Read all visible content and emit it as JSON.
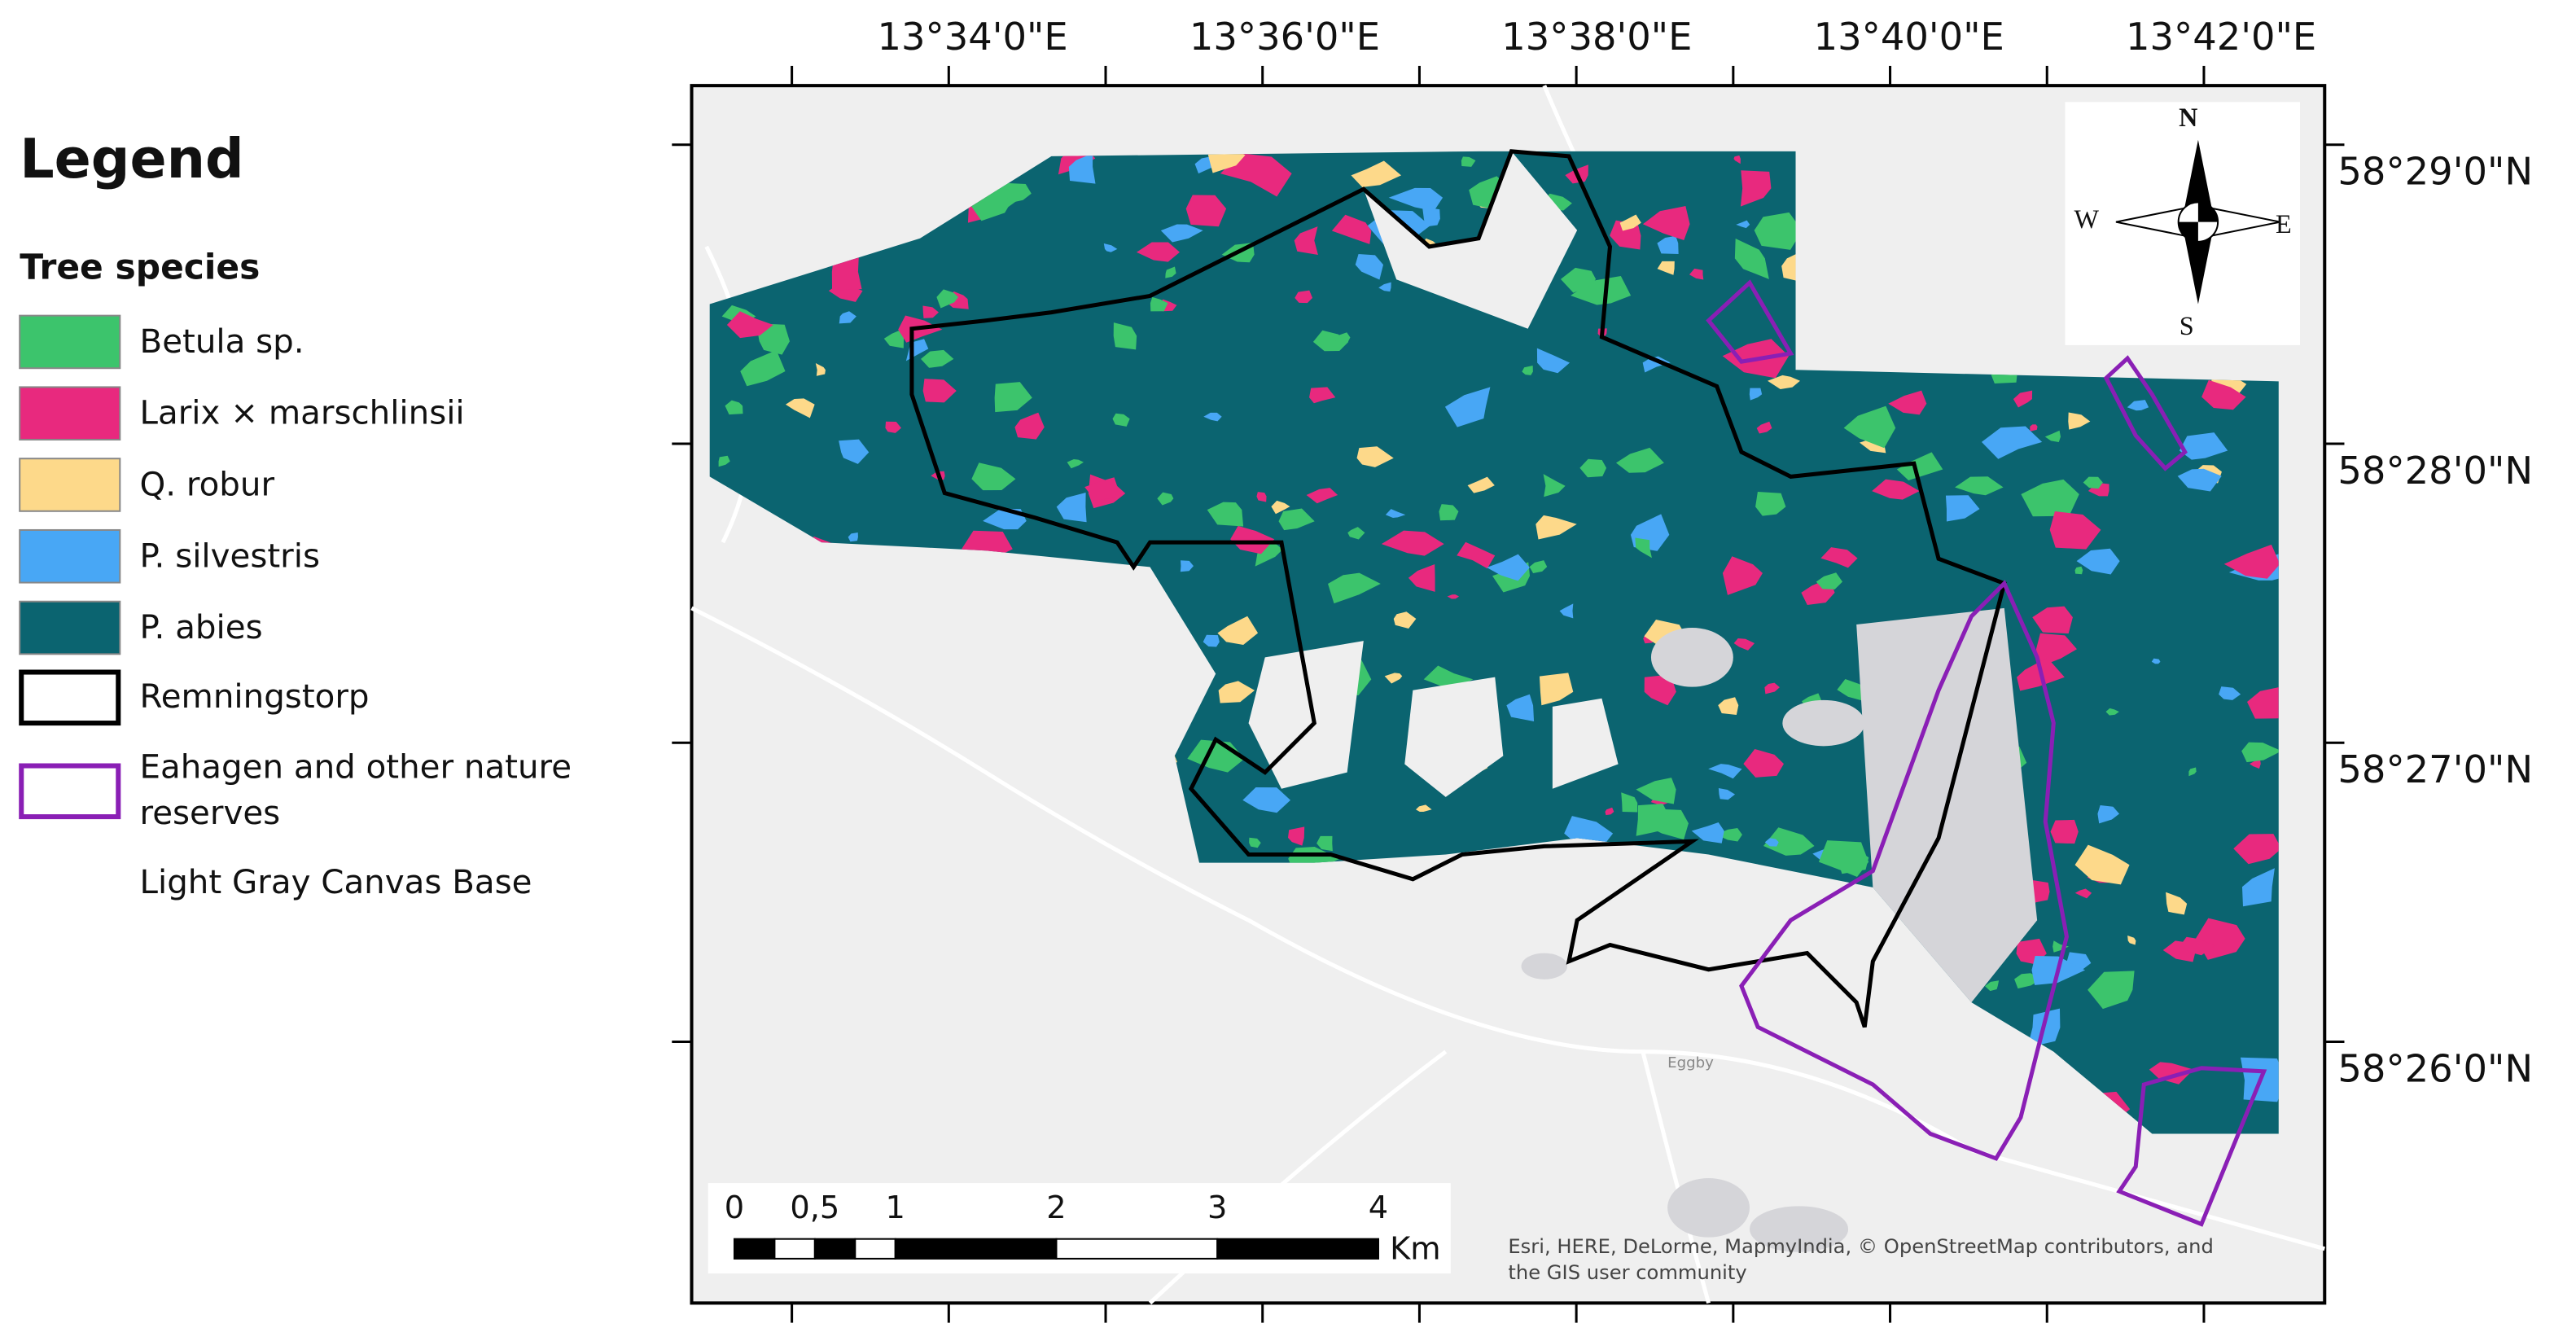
{
  "legend": {
    "title": "Legend",
    "group_title": "Tree species",
    "species": [
      {
        "label": "Betula sp.",
        "color": "#3cc46c"
      },
      {
        "label": "Larix × marschlinsii",
        "color": "#e8297e"
      },
      {
        "label": "Q. robur",
        "color": "#fdd98a"
      },
      {
        "label": "P. silvestris",
        "color": "#48a7f5"
      },
      {
        "label": "P. abies",
        "color": "#0b6470"
      }
    ],
    "outlines": [
      {
        "label": "Remningstorp",
        "color": "#000000"
      },
      {
        "label": "Eahagen and other nature reserves",
        "color": "#8a1fb5"
      }
    ],
    "basemap": "Light Gray Canvas Base"
  },
  "map": {
    "top_labels": [
      "13°34'0\"E",
      "13°36'0\"E",
      "13°38'0\"E",
      "13°40'0\"E",
      "13°42'0\"E"
    ],
    "right_labels": [
      "58°29'0\"N",
      "58°28'0\"N",
      "58°27'0\"N",
      "58°26'0\"N"
    ],
    "compass": {
      "n": "N",
      "e": "E",
      "s": "S",
      "w": "W"
    },
    "scale_bar": {
      "ticks": [
        0,
        {
          "value": 0.5,
          "label": "0,5"
        },
        1,
        2,
        3,
        4
      ],
      "unit": "Km"
    },
    "place_label": "Eggby",
    "attribution": [
      "Esri, HERE, DeLorme, MapmyIndia, © OpenStreetMap contributors, and",
      "the GIS user community"
    ]
  }
}
